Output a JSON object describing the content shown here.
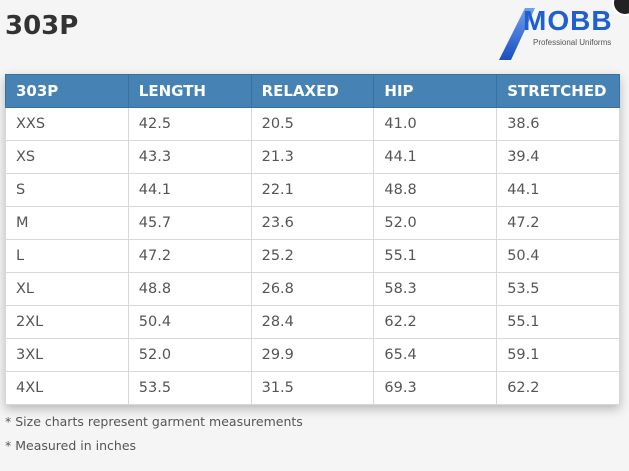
{
  "title": "303P",
  "logo": {
    "text": "MOBB",
    "tagline": "Professional Uniforms",
    "color": "#1f5fcf"
  },
  "table": {
    "headers": [
      "303P",
      "LENGTH",
      "RELAXED",
      "HIP",
      "STRETCHED"
    ],
    "rows": [
      [
        "XXS",
        "42.5",
        "20.5",
        "41.0",
        "38.6"
      ],
      [
        "XS",
        "43.3",
        "21.3",
        "44.1",
        "39.4"
      ],
      [
        "S",
        "44.1",
        "22.1",
        "48.8",
        "44.1"
      ],
      [
        "M",
        "45.7",
        "23.6",
        "52.0",
        "47.2"
      ],
      [
        "L",
        "47.2",
        "25.2",
        "55.1",
        "50.4"
      ],
      [
        "XL",
        "48.8",
        "26.8",
        "58.3",
        "53.5"
      ],
      [
        "2XL",
        "50.4",
        "28.4",
        "62.2",
        "55.1"
      ],
      [
        "3XL",
        "52.0",
        "29.9",
        "65.4",
        "59.1"
      ],
      [
        "4XL",
        "53.5",
        "31.5",
        "69.3",
        "62.2"
      ]
    ]
  },
  "notes": [
    "* Size charts represent garment measurements",
    "* Measured in inches"
  ],
  "colors": {
    "header": "#4682b4"
  }
}
